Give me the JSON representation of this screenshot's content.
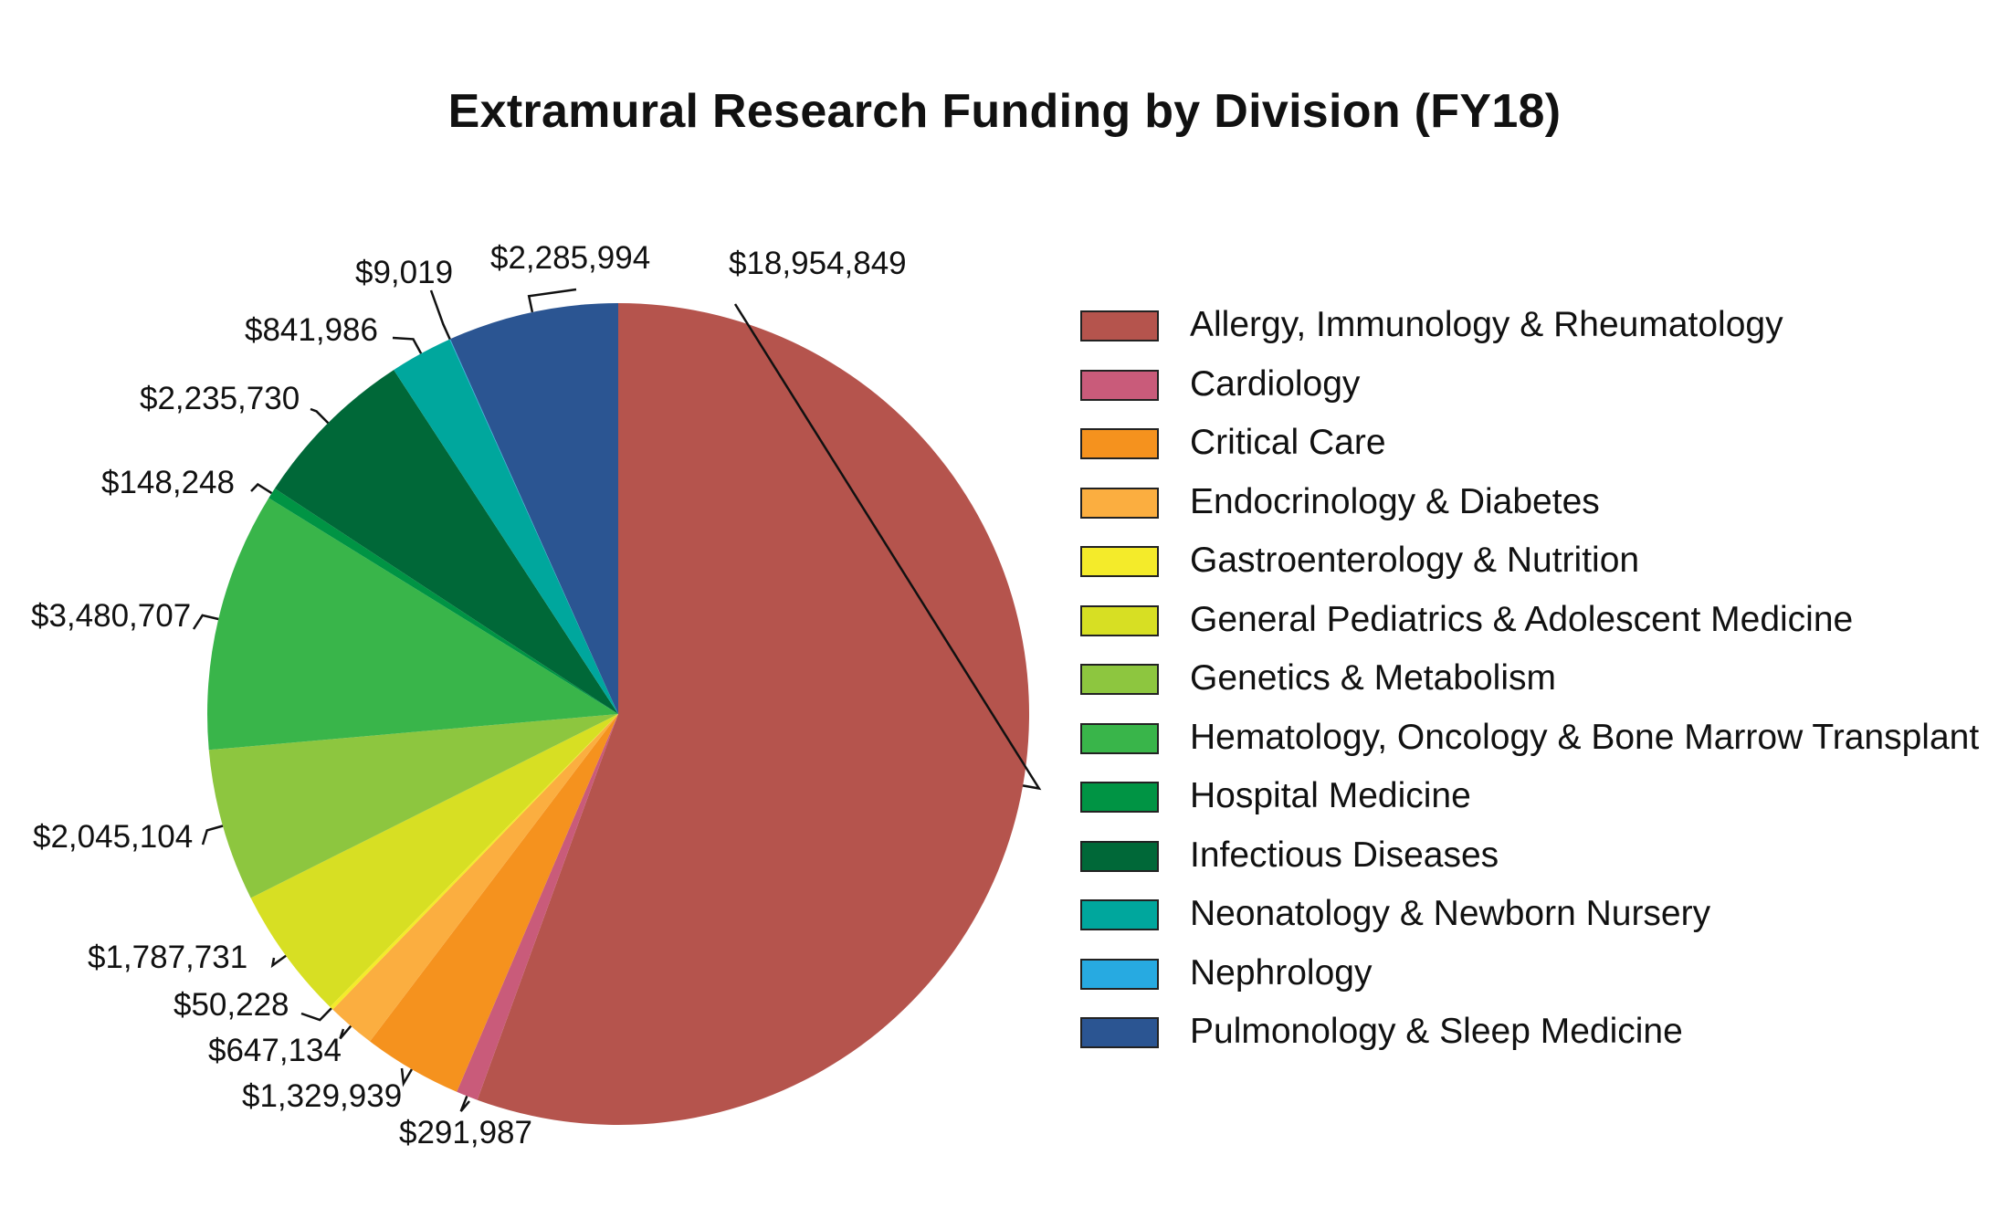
{
  "chart_data": {
    "type": "pie",
    "title": "Extramural Research Funding by Division (FY18)",
    "start_angle_deg": 0,
    "direction": "clockwise",
    "slices": [
      {
        "name": "Allergy, Immunology & Rheumatology",
        "value": 18954849,
        "label": "$18,954,849",
        "color": "#B5544D"
      },
      {
        "name": "Cardiology",
        "value": 291987,
        "label": "$291,987",
        "color": "#C95B7A"
      },
      {
        "name": "Critical Care",
        "value": 1329939,
        "label": "$1,329,939",
        "color": "#F5921E"
      },
      {
        "name": "Endocrinology & Diabetes",
        "value": 647134,
        "label": "$647,134",
        "color": "#FBAE40"
      },
      {
        "name": "Gastroenterology & Nutrition",
        "value": 50228,
        "label": "$50,228",
        "color": "#F4EB2A"
      },
      {
        "name": "General Pediatrics & Adolescent Medicine",
        "value": 1787731,
        "label": "$1,787,731",
        "color": "#D7DF23"
      },
      {
        "name": "Genetics & Metabolism",
        "value": 2045104,
        "label": "$2,045,104",
        "color": "#8DC63F"
      },
      {
        "name": "Hematology, Oncology & Bone Marrow Transplant",
        "value": 3480707,
        "label": "$3,480,707",
        "color": "#39B54A"
      },
      {
        "name": "Hospital Medicine",
        "value": 148248,
        "label": "$148,248",
        "color": "#009444"
      },
      {
        "name": "Infectious Diseases",
        "value": 2235730,
        "label": "$2,235,730",
        "color": "#006838"
      },
      {
        "name": "Neonatology & Newborn Nursery",
        "value": 841986,
        "label": "$841,986",
        "color": "#00A79D"
      },
      {
        "name": "Nephrology",
        "value": 9019,
        "label": "$9,019",
        "color": "#27AAE1"
      },
      {
        "name": "Pulmonology & Sleep Medicine",
        "value": 2285994,
        "label": "$2,285,994",
        "color": "#2B5592"
      }
    ],
    "legend_position": "right"
  }
}
